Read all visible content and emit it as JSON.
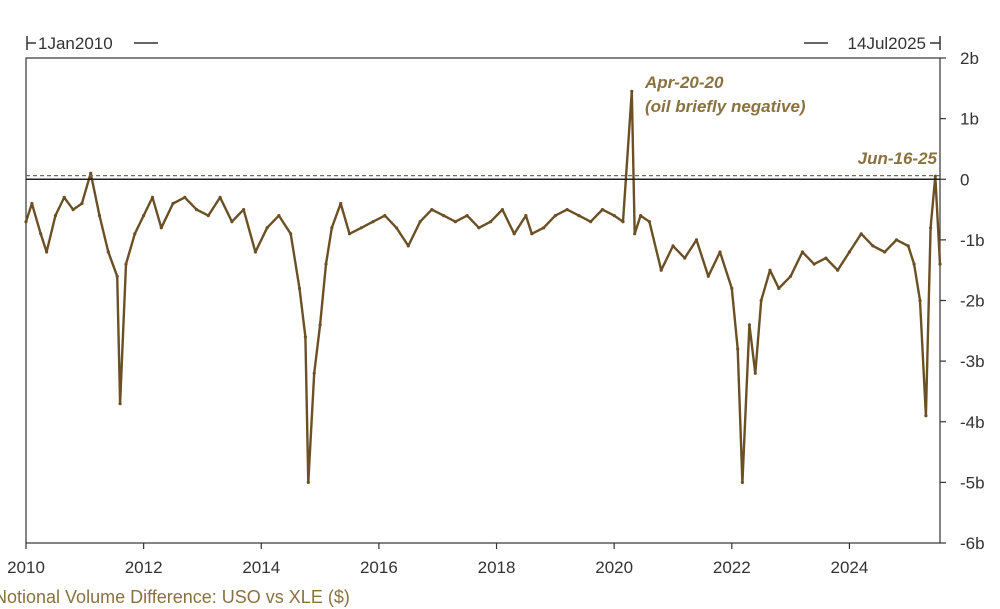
{
  "colors": {
    "series": "#6b5025",
    "annotation": "#8a7240",
    "axis": "#333333",
    "zero_line": "#222222",
    "dashed_line": "#7a6a50"
  },
  "range_start_label": "1Jan2010",
  "range_end_label": "14Jul2025",
  "legend_label": "Notional Volume Difference: USO vs XLE ($)",
  "chart_data": {
    "type": "line",
    "title": "",
    "xlabel": "",
    "ylabel": "",
    "x_range": [
      2010.0,
      2025.54
    ],
    "ylim": [
      -6,
      2
    ],
    "y_unit": "b",
    "x_ticks": [
      "2010",
      "2012",
      "2014",
      "2016",
      "2018",
      "2020",
      "2022",
      "2024"
    ],
    "y_ticks": [
      "2b",
      "1b",
      "0",
      "-1b",
      "-2b",
      "-3b",
      "-4b",
      "-5b",
      "-6b"
    ],
    "reference_lines": [
      {
        "y": 0,
        "style": "solid"
      },
      {
        "y": 0.06,
        "style": "dashed"
      }
    ],
    "annotations": [
      {
        "text": "Apr-20-20",
        "x": 2020.3,
        "y": 1.45
      },
      {
        "text": "(oil briefly negative)",
        "x": 2020.3,
        "y": 1.45
      },
      {
        "text": "Jun-16-25",
        "x": 2025.46,
        "y": 0.1
      }
    ],
    "series": [
      {
        "name": "Notional Volume Difference: USO vs XLE ($)",
        "x": [
          2010.0,
          2010.1,
          2010.25,
          2010.35,
          2010.5,
          2010.65,
          2010.8,
          2010.95,
          2011.1,
          2011.25,
          2011.4,
          2011.55,
          2011.6,
          2011.7,
          2011.85,
          2012.0,
          2012.15,
          2012.3,
          2012.5,
          2012.7,
          2012.9,
          2013.1,
          2013.3,
          2013.5,
          2013.7,
          2013.9,
          2014.1,
          2014.3,
          2014.5,
          2014.65,
          2014.75,
          2014.8,
          2014.9,
          2015.0,
          2015.1,
          2015.2,
          2015.35,
          2015.5,
          2015.7,
          2015.9,
          2016.1,
          2016.3,
          2016.5,
          2016.7,
          2016.9,
          2017.1,
          2017.3,
          2017.5,
          2017.7,
          2017.9,
          2018.1,
          2018.3,
          2018.5,
          2018.6,
          2018.8,
          2019.0,
          2019.2,
          2019.4,
          2019.6,
          2019.8,
          2020.0,
          2020.15,
          2020.3,
          2020.35,
          2020.45,
          2020.6,
          2020.8,
          2021.0,
          2021.2,
          2021.4,
          2021.6,
          2021.8,
          2022.0,
          2022.1,
          2022.18,
          2022.3,
          2022.4,
          2022.5,
          2022.65,
          2022.8,
          2023.0,
          2023.2,
          2023.4,
          2023.6,
          2023.8,
          2024.0,
          2024.2,
          2024.4,
          2024.6,
          2024.8,
          2025.0,
          2025.1,
          2025.2,
          2025.3,
          2025.38,
          2025.46,
          2025.54
        ],
        "values": [
          -0.7,
          -0.4,
          -0.9,
          -1.2,
          -0.6,
          -0.3,
          -0.5,
          -0.4,
          0.1,
          -0.6,
          -1.2,
          -1.6,
          -3.7,
          -1.4,
          -0.9,
          -0.6,
          -0.3,
          -0.8,
          -0.4,
          -0.3,
          -0.5,
          -0.6,
          -0.3,
          -0.7,
          -0.5,
          -1.2,
          -0.8,
          -0.6,
          -0.9,
          -1.8,
          -2.6,
          -5.0,
          -3.2,
          -2.4,
          -1.4,
          -0.8,
          -0.4,
          -0.9,
          -0.8,
          -0.7,
          -0.6,
          -0.8,
          -1.1,
          -0.7,
          -0.5,
          -0.6,
          -0.7,
          -0.6,
          -0.8,
          -0.7,
          -0.5,
          -0.9,
          -0.6,
          -0.9,
          -0.8,
          -0.6,
          -0.5,
          -0.6,
          -0.7,
          -0.5,
          -0.6,
          -0.7,
          1.45,
          -0.9,
          -0.6,
          -0.7,
          -1.5,
          -1.1,
          -1.3,
          -1.0,
          -1.6,
          -1.2,
          -1.8,
          -2.8,
          -5.0,
          -2.4,
          -3.2,
          -2.0,
          -1.5,
          -1.8,
          -1.6,
          -1.2,
          -1.4,
          -1.3,
          -1.5,
          -1.2,
          -0.9,
          -1.1,
          -1.2,
          -1.0,
          -1.1,
          -1.4,
          -2.0,
          -3.9,
          -0.8,
          0.05,
          -1.4
        ]
      }
    ]
  }
}
